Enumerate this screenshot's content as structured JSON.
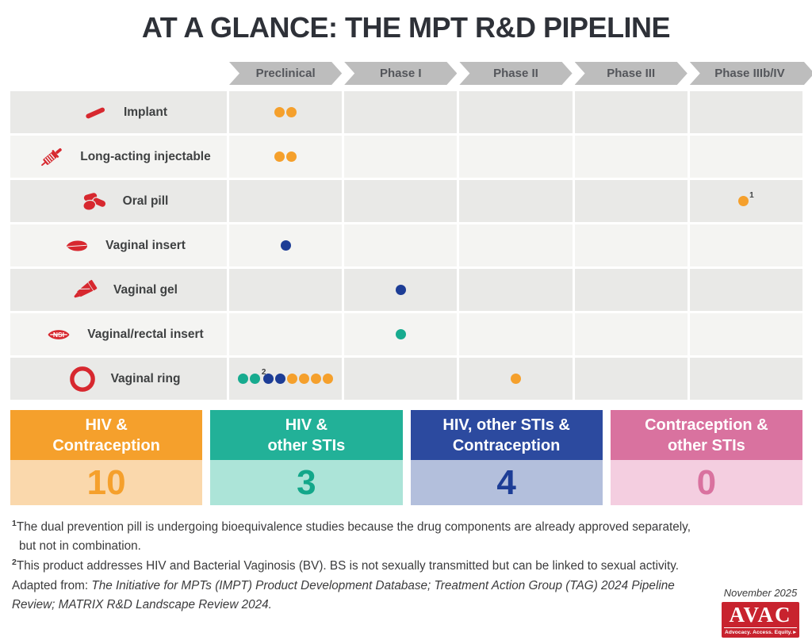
{
  "title": "AT A GLANCE: THE MPT R&D PIPELINE",
  "phases": [
    "Preclinical",
    "Phase I",
    "Phase II",
    "Phase III",
    "Phase IIIb/IV"
  ],
  "dot_colors": {
    "orange": "#f5a02c",
    "teal": "#17ab8f",
    "navy": "#1d3d96"
  },
  "rows": [
    {
      "label": "Implant",
      "icon": "implant-icon",
      "cells": [
        [
          {
            "color": "orange"
          },
          {
            "color": "orange"
          }
        ],
        [],
        [],
        [],
        []
      ]
    },
    {
      "label": "Long-acting injectable",
      "icon": "syringe-icon",
      "cells": [
        [
          {
            "color": "orange"
          },
          {
            "color": "orange"
          }
        ],
        [],
        [],
        [],
        []
      ]
    },
    {
      "label": "Oral pill",
      "icon": "pills-icon",
      "cells": [
        [],
        [],
        [],
        [],
        [
          {
            "color": "orange",
            "sup": "1",
            "supSide": "right"
          }
        ]
      ]
    },
    {
      "label": "Vaginal insert",
      "icon": "vaginal-insert-icon",
      "cells": [
        [
          {
            "color": "navy"
          }
        ],
        [],
        [],
        [],
        []
      ]
    },
    {
      "label": "Vaginal gel",
      "icon": "gel-tube-icon",
      "cells": [
        [],
        [
          {
            "color": "navy"
          }
        ],
        [],
        [],
        []
      ]
    },
    {
      "label": "Vaginal/rectal insert",
      "icon": "nsi-insert-icon",
      "cells": [
        [],
        [
          {
            "color": "teal"
          }
        ],
        [],
        [],
        []
      ]
    },
    {
      "label": "Vaginal ring",
      "icon": "ring-icon",
      "cells": [
        [
          {
            "color": "teal"
          },
          {
            "color": "teal"
          },
          {
            "color": "navy",
            "sup": "2",
            "supSide": "left"
          },
          {
            "color": "navy"
          },
          {
            "color": "orange"
          },
          {
            "color": "orange"
          },
          {
            "color": "orange"
          },
          {
            "color": "orange"
          }
        ],
        [],
        [
          {
            "color": "orange"
          }
        ],
        [],
        []
      ]
    }
  ],
  "summary": [
    {
      "line1": "HIV &",
      "line2": "Contraception",
      "count": "10",
      "header_color": "#f5a02c",
      "body_color": "#fad8ac",
      "count_color": "#f5a02c"
    },
    {
      "line1": "HIV &",
      "line2": "other STIs",
      "count": "3",
      "header_color": "#22b198",
      "body_color": "#ace4d8",
      "count_color": "#13a78a"
    },
    {
      "line1": "HIV, other STIs &",
      "line2": "Contraception",
      "count": "4",
      "header_color": "#2c4a9f",
      "body_color": "#b3bfdc",
      "count_color": "#1d3d96"
    },
    {
      "line1": "Contraception &",
      "line2": "other STIs",
      "count": "0",
      "header_color": "#d9729f",
      "body_color": "#f4cee0",
      "count_color": "#d9729f"
    }
  ],
  "footnotes": [
    {
      "sup": "1",
      "text": "The dual prevention pill is undergoing bioequivalence studies because the drug components are already approved separately, but not in combination."
    },
    {
      "sup": "2",
      "text": "This product addresses HIV and Bacterial Vaginosis (BV). BS is not sexually transmitted but can be linked to sexual activity."
    }
  ],
  "source_line": {
    "prefix": "Adapted from: ",
    "italic": "The Initiative for MPTs (IMPT) Product Development Database; Treatment Action Group (TAG) 2024 Pipeline Review; MATRIX R&D Landscape Review 2024."
  },
  "date_label": "November 2025",
  "logo": {
    "name": "AVAC",
    "tagline": "Advocacy. Access. Equity."
  },
  "chart_data": {
    "type": "table",
    "title": "AT A GLANCE: THE MPT R&D PIPELINE",
    "columns": [
      "Preclinical",
      "Phase I",
      "Phase II",
      "Phase III",
      "Phase IIIb/IV"
    ],
    "legend": [
      {
        "label": "HIV & Contraception",
        "color": "#f5a02c",
        "total": 10
      },
      {
        "label": "HIV & other STIs",
        "color": "#17ab8f",
        "total": 3
      },
      {
        "label": "HIV, other STIs & Contraception",
        "color": "#1d3d96",
        "total": 4
      },
      {
        "label": "Contraception & other STIs",
        "color": "#d9729f",
        "total": 0
      }
    ],
    "rows": [
      {
        "product": "Implant",
        "counts": {
          "Preclinical": {
            "HIV & Contraception": 2
          }
        }
      },
      {
        "product": "Long-acting injectable",
        "counts": {
          "Preclinical": {
            "HIV & Contraception": 2
          }
        }
      },
      {
        "product": "Oral pill",
        "counts": {
          "Phase IIIb/IV": {
            "HIV & Contraception": 1
          }
        },
        "note": "1"
      },
      {
        "product": "Vaginal insert",
        "counts": {
          "Preclinical": {
            "HIV, other STIs & Contraception": 1
          }
        }
      },
      {
        "product": "Vaginal gel",
        "counts": {
          "Phase I": {
            "HIV, other STIs & Contraception": 1
          }
        }
      },
      {
        "product": "Vaginal/rectal insert",
        "counts": {
          "Phase I": {
            "HIV & other STIs": 1
          }
        }
      },
      {
        "product": "Vaginal ring",
        "counts": {
          "Preclinical": {
            "HIV & other STIs": 2,
            "HIV, other STIs & Contraception": 2,
            "HIV & Contraception": 4
          },
          "Phase II": {
            "HIV & Contraception": 1
          }
        },
        "note": "2"
      }
    ]
  }
}
